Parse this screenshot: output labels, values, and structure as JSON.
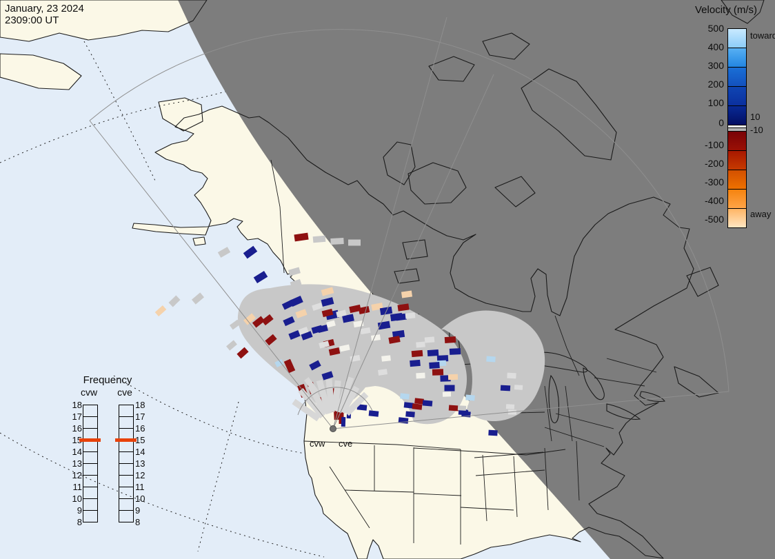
{
  "datestamp": {
    "date": "January, 23 2024",
    "time": "2309:00 UT"
  },
  "velocity_legend": {
    "title": "Velocity (m/s)",
    "ticks": [
      "500",
      "400",
      "300",
      "200",
      "100",
      "0",
      "-100",
      "-200",
      "-300",
      "-400",
      "-500"
    ],
    "toward_label": "toward",
    "away_label": "away",
    "inner_pos_label": "10",
    "inner_neg_label": "-10",
    "segments": [
      {
        "h": 27,
        "top": "#c9eaff",
        "bottom": "#8cccf8"
      },
      {
        "h": 27,
        "top": "#57b0f3",
        "bottom": "#2286e2"
      },
      {
        "h": 27,
        "top": "#1a6fd6",
        "bottom": "#1351be"
      },
      {
        "h": 27,
        "top": "#0f45b3",
        "bottom": "#0b309e"
      },
      {
        "h": 27,
        "top": "#082a95",
        "bottom": "#030e62"
      },
      {
        "h": 3,
        "top": "#ffffff",
        "bottom": "#f2f2f2"
      },
      {
        "h": 4,
        "top": "#bbbbbb",
        "bottom": "#aaaaaa"
      },
      {
        "h": 27,
        "top": "#790307",
        "bottom": "#9b1005"
      },
      {
        "h": 27,
        "top": "#a81800",
        "bottom": "#c63a00"
      },
      {
        "h": 27,
        "top": "#d25000",
        "bottom": "#ee7100"
      },
      {
        "h": 27,
        "top": "#f5830f",
        "bottom": "#ffa448"
      },
      {
        "h": 27,
        "top": "#ffb565",
        "bottom": "#ffe6c2"
      }
    ]
  },
  "frequency_legend": {
    "title": "Frequency",
    "columns": [
      "cvw",
      "cve"
    ],
    "ticks": [
      "18",
      "17",
      "16",
      "15",
      "14",
      "13",
      "12",
      "11",
      "10",
      "9",
      "8"
    ],
    "marker_value": 15,
    "marker_color": "#e8420b"
  },
  "radar_site": {
    "labels": [
      "cvw",
      "cve"
    ]
  },
  "colors": {
    "day_sea": "#e3edf8",
    "day_land": "#fbf8e7",
    "night": "#7d7d7d",
    "outline": "#1a1a1a",
    "fov_line": "#8f8f8f",
    "ground_scatter": "#c8c8c8",
    "cell_palette": {
      "r": "#8e1111",
      "b": "#191e8f",
      "p": "#f5d2ab",
      "l": "#b5d7ee",
      "w": "#f4f3ec",
      "g": "#c8c8c8",
      "G": "#dedede",
      "s": "#d7d7d7"
    }
  },
  "chart_data": {
    "type": "map-overlay",
    "description": "SuperDARN line-of-sight velocity cells [x,y,w,h,rot,color-key]; keys: r=away(dark red), b=toward(dark blue), p=strong away(peach), l=strong toward(light blue), w/g/G/s=ground scatter",
    "cells": [
      [
        437,
        344,
        20,
        10,
        -8,
        "r"
      ],
      [
        463,
        347,
        18,
        9,
        -5,
        "g"
      ],
      [
        489,
        350,
        19,
        9,
        -3,
        "g"
      ],
      [
        514,
        352,
        18,
        9,
        0,
        "g"
      ],
      [
        325,
        366,
        16,
        9,
        -30,
        "g"
      ],
      [
        363,
        366,
        18,
        10,
        -36,
        "b"
      ],
      [
        378,
        402,
        18,
        10,
        -32,
        "b"
      ],
      [
        427,
        394,
        16,
        9,
        -16,
        "g"
      ],
      [
        429,
        411,
        15,
        8,
        -18,
        "g"
      ],
      [
        408,
        430,
        14,
        8,
        -22,
        "g"
      ],
      [
        287,
        433,
        16,
        9,
        -40,
        "g"
      ],
      [
        253,
        437,
        15,
        9,
        -44,
        "g"
      ],
      [
        233,
        451,
        15,
        8,
        -42,
        "p"
      ],
      [
        375,
        467,
        16,
        9,
        -38,
        "r"
      ],
      [
        388,
        464,
        15,
        9,
        -38,
        "r"
      ],
      [
        393,
        493,
        15,
        9,
        -40,
        "r"
      ],
      [
        341,
        471,
        14,
        8,
        -36,
        "g"
      ],
      [
        362,
        463,
        16,
        9,
        -40,
        "p"
      ],
      [
        336,
        501,
        14,
        8,
        -40,
        "g"
      ],
      [
        352,
        512,
        15,
        9,
        -42,
        "r"
      ],
      [
        405,
        527,
        11,
        8,
        -26,
        "l"
      ],
      [
        418,
        442,
        16,
        9,
        -26,
        "b"
      ],
      [
        430,
        437,
        17,
        10,
        -24,
        "b"
      ],
      [
        419,
        466,
        15,
        9,
        -24,
        "b"
      ],
      [
        427,
        486,
        15,
        9,
        -22,
        "b"
      ],
      [
        445,
        487,
        15,
        9,
        -20,
        "b"
      ],
      [
        457,
        530,
        15,
        9,
        -28,
        "b"
      ],
      [
        420,
        531,
        10,
        18,
        -24,
        "r"
      ],
      [
        475,
        423,
        17,
        9,
        -15,
        "p"
      ],
      [
        437,
        455,
        15,
        9,
        -20,
        "p"
      ],
      [
        590,
        427,
        15,
        9,
        -8,
        "p"
      ],
      [
        547,
        445,
        16,
        9,
        -10,
        "p"
      ],
      [
        475,
        438,
        17,
        10,
        -14,
        "b"
      ],
      [
        482,
        457,
        18,
        11,
        -12,
        "b"
      ],
      [
        460,
        478,
        15,
        9,
        -16,
        "b"
      ],
      [
        468,
        477,
        14,
        9,
        -14,
        "b"
      ],
      [
        505,
        462,
        16,
        10,
        -12,
        "b"
      ],
      [
        475,
        454,
        15,
        9,
        -14,
        "r"
      ],
      [
        515,
        448,
        16,
        9,
        -12,
        "r"
      ],
      [
        528,
        450,
        15,
        9,
        -12,
        "r"
      ],
      [
        477,
        498,
        15,
        9,
        -14,
        "r"
      ],
      [
        485,
        510,
        15,
        9,
        -12,
        "r"
      ],
      [
        560,
        451,
        17,
        10,
        -9,
        "b"
      ],
      [
        575,
        460,
        17,
        10,
        -8,
        "b"
      ],
      [
        585,
        446,
        16,
        9,
        -8,
        "r"
      ],
      [
        557,
        472,
        17,
        10,
        -10,
        "b"
      ],
      [
        578,
        485,
        17,
        10,
        -8,
        "b"
      ],
      [
        572,
        493,
        16,
        9,
        -10,
        "r"
      ],
      [
        597,
        490,
        15,
        8,
        -6,
        "g"
      ],
      [
        605,
        513,
        16,
        9,
        -5,
        "r"
      ],
      [
        623,
        493,
        14,
        8,
        -5,
        "G"
      ],
      [
        628,
        512,
        16,
        9,
        -4,
        "b"
      ],
      [
        642,
        520,
        16,
        9,
        -3,
        "b"
      ],
      [
        653,
        493,
        16,
        9,
        -4,
        "r"
      ],
      [
        660,
        510,
        16,
        9,
        -3,
        "b"
      ],
      [
        640,
        527,
        14,
        8,
        -3,
        "l"
      ],
      [
        630,
        530,
        15,
        9,
        -4,
        "b"
      ],
      [
        602,
        527,
        15,
        9,
        -5,
        "b"
      ],
      [
        635,
        540,
        16,
        9,
        -2,
        "r"
      ],
      [
        646,
        549,
        15,
        9,
        -2,
        "b"
      ],
      [
        657,
        547,
        14,
        8,
        -2,
        "p"
      ],
      [
        662,
        562,
        14,
        8,
        0,
        "g"
      ],
      [
        652,
        563,
        15,
        9,
        0,
        "b"
      ],
      [
        582,
        460,
        15,
        9,
        -7,
        "b"
      ],
      [
        595,
        458,
        14,
        8,
        -6,
        "G"
      ],
      [
        520,
        470,
        14,
        8,
        -10,
        "w"
      ],
      [
        545,
        490,
        13,
        8,
        -8,
        "w"
      ],
      [
        500,
        505,
        14,
        8,
        -12,
        "w"
      ],
      [
        560,
        520,
        13,
        8,
        -6,
        "w"
      ],
      [
        480,
        470,
        12,
        8,
        -15,
        "w"
      ],
      [
        610,
        545,
        13,
        8,
        -3,
        "w"
      ],
      [
        648,
        572,
        12,
        7,
        -2,
        "w"
      ],
      [
        460,
        445,
        14,
        8,
        -18,
        "G"
      ],
      [
        495,
        455,
        14,
        8,
        -14,
        "G"
      ],
      [
        530,
        480,
        14,
        8,
        -10,
        "G"
      ],
      [
        470,
        500,
        14,
        8,
        -15,
        "G"
      ],
      [
        440,
        480,
        13,
        8,
        -20,
        "G"
      ],
      [
        515,
        520,
        14,
        8,
        -10,
        "G"
      ],
      [
        555,
        540,
        13,
        8,
        -8,
        "G"
      ],
      [
        610,
        500,
        13,
        8,
        -5,
        "G"
      ],
      [
        475,
        545,
        15,
        9,
        -18,
        "b"
      ],
      [
        439,
        567,
        10,
        18,
        -20,
        "r"
      ],
      [
        452,
        563,
        9,
        16,
        -18,
        "r"
      ],
      [
        467,
        585,
        9,
        18,
        -10,
        "r"
      ],
      [
        480,
        585,
        8,
        26,
        -6,
        "r"
      ],
      [
        488,
        595,
        8,
        28,
        -3,
        "r"
      ],
      [
        495,
        603,
        7,
        24,
        0,
        "r"
      ],
      [
        487,
        572,
        7,
        18,
        -5,
        "r"
      ],
      [
        498,
        612,
        6,
        14,
        2,
        "b"
      ],
      [
        506,
        601,
        6,
        12,
        3,
        "b"
      ],
      [
        525,
        591,
        14,
        8,
        6,
        "b"
      ],
      [
        542,
        600,
        14,
        8,
        6,
        "b"
      ],
      [
        587,
        575,
        13,
        8,
        6,
        "l"
      ],
      [
        593,
        588,
        14,
        8,
        6,
        "b"
      ],
      [
        585,
        610,
        14,
        8,
        6,
        "b"
      ],
      [
        605,
        590,
        14,
        8,
        6,
        "r"
      ],
      [
        608,
        582,
        13,
        8,
        6,
        "r"
      ],
      [
        620,
        585,
        14,
        8,
        5,
        "b"
      ],
      [
        595,
        601,
        13,
        8,
        5,
        "b"
      ],
      [
        658,
        592,
        14,
        8,
        4,
        "r"
      ],
      [
        672,
        598,
        14,
        8,
        4,
        "b"
      ],
      [
        676,
        601,
        13,
        8,
        4,
        "b"
      ],
      [
        682,
        577,
        13,
        8,
        5,
        "l"
      ],
      [
        670,
        592,
        12,
        7,
        4,
        "g"
      ],
      [
        684,
        592,
        12,
        7,
        4,
        "g"
      ],
      [
        712,
        521,
        13,
        8,
        4,
        "l"
      ],
      [
        690,
        523,
        12,
        7,
        4,
        "g"
      ],
      [
        733,
        563,
        14,
        8,
        3,
        "b"
      ],
      [
        742,
        545,
        13,
        8,
        3,
        "G"
      ],
      [
        740,
        590,
        12,
        7,
        3,
        "G"
      ],
      [
        752,
        562,
        12,
        7,
        3,
        "G"
      ],
      [
        743,
        598,
        12,
        7,
        2,
        "G"
      ],
      [
        715,
        628,
        13,
        8,
        3,
        "b"
      ],
      [
        444,
        595,
        9,
        44,
        -55,
        "s"
      ],
      [
        452,
        585,
        9,
        50,
        -40,
        "s"
      ],
      [
        461,
        580,
        9,
        46,
        -28,
        "s"
      ],
      [
        470,
        576,
        9,
        50,
        -16,
        "s"
      ],
      [
        479,
        574,
        9,
        48,
        -5,
        "s"
      ],
      [
        488,
        574,
        9,
        44,
        6,
        "s"
      ],
      [
        498,
        576,
        9,
        46,
        18,
        "s"
      ],
      [
        507,
        580,
        9,
        42,
        30,
        "s"
      ],
      [
        517,
        586,
        9,
        40,
        45,
        "s"
      ],
      [
        452,
        560,
        8,
        26,
        -36,
        "s"
      ],
      [
        505,
        560,
        8,
        26,
        20,
        "s"
      ]
    ]
  }
}
